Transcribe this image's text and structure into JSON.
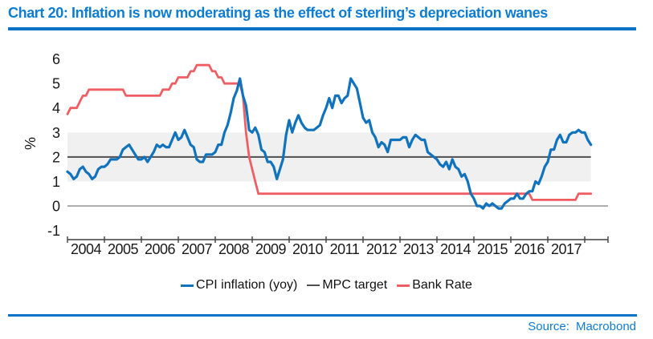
{
  "header": {
    "title": "Chart 20: Inflation is now moderating as the effect of sterling’s depreciation wanes"
  },
  "footer": {
    "source_label": "Source:",
    "source_value": "Macrobond"
  },
  "colors": {
    "accent_blue": "#0e7dd1",
    "rule_blue": "#0b73c5",
    "cpi_line": "#1273bd",
    "bank_rate_line": "#ef5e63",
    "mpc_line": "#4f4f51",
    "zero_line": "#949494",
    "axis": "#3f3f3f",
    "band_fill": "#f0f0f1",
    "tick_text": "#1a1a1a"
  },
  "legend": {
    "items": [
      {
        "label": "CPI inflation (yoy)",
        "color_key": "cpi_line"
      },
      {
        "label": "MPC target",
        "color_key": "mpc_line"
      },
      {
        "label": "Bank Rate",
        "color_key": "bank_rate_line"
      }
    ]
  },
  "chart_data": {
    "type": "line",
    "ylabel": "%",
    "ylim": [
      -1,
      6
    ],
    "yticks": [
      -1,
      0,
      1,
      2,
      3,
      4,
      5,
      6
    ],
    "x_tick_years": [
      2004,
      2005,
      2006,
      2007,
      2008,
      2009,
      2010,
      2011,
      2012,
      2013,
      2014,
      2015,
      2016,
      2017,
      2018
    ],
    "x_year_labels": [
      "2004",
      "2005",
      "2006",
      "2007",
      "2008",
      "2009",
      "2010",
      "2011",
      "2012",
      "2013",
      "2014",
      "2015",
      "2016",
      "2017"
    ],
    "grid": {
      "zero_line": true
    },
    "target_band": {
      "low": 1,
      "high": 3
    },
    "series": [
      {
        "name": "CPI inflation (yoy)",
        "color_key": "cpi_line",
        "start": "2004-01",
        "frequency": "monthly",
        "values": [
          1.4,
          1.3,
          1.1,
          1.2,
          1.5,
          1.6,
          1.4,
          1.3,
          1.1,
          1.2,
          1.5,
          1.6,
          1.6,
          1.7,
          1.9,
          1.9,
          1.9,
          2.0,
          2.3,
          2.4,
          2.5,
          2.3,
          2.1,
          1.9,
          1.9,
          2.0,
          1.8,
          2.0,
          2.2,
          2.5,
          2.4,
          2.5,
          2.4,
          2.4,
          2.7,
          3.0,
          2.7,
          2.8,
          3.1,
          2.8,
          2.5,
          2.4,
          1.9,
          1.8,
          1.8,
          2.1,
          2.1,
          2.1,
          2.2,
          2.5,
          2.5,
          3.0,
          3.3,
          3.8,
          4.4,
          4.7,
          5.2,
          4.5,
          4.1,
          3.1,
          3.0,
          3.2,
          2.9,
          2.3,
          2.2,
          1.8,
          1.8,
          1.6,
          1.1,
          1.5,
          1.9,
          2.9,
          3.5,
          3.0,
          3.4,
          3.7,
          3.4,
          3.2,
          3.1,
          3.1,
          3.1,
          3.2,
          3.3,
          3.7,
          4.0,
          4.4,
          4.0,
          4.5,
          4.5,
          4.2,
          4.4,
          4.5,
          5.2,
          5.0,
          4.8,
          4.2,
          3.6,
          3.4,
          3.5,
          3.0,
          2.8,
          2.4,
          2.6,
          2.5,
          2.2,
          2.7,
          2.7,
          2.7,
          2.7,
          2.8,
          2.8,
          2.4,
          2.7,
          2.9,
          2.8,
          2.7,
          2.7,
          2.2,
          2.1,
          2.0,
          1.9,
          1.7,
          1.6,
          1.8,
          1.5,
          1.9,
          1.6,
          1.5,
          1.2,
          1.3,
          1.0,
          0.5,
          0.3,
          0.0,
          0.0,
          -0.1,
          0.1,
          0.0,
          0.1,
          0.0,
          -0.1,
          -0.1,
          0.1,
          0.2,
          0.3,
          0.3,
          0.5,
          0.3,
          0.3,
          0.5,
          0.6,
          0.6,
          1.0,
          0.9,
          1.2,
          1.6,
          1.8,
          2.3,
          2.3,
          2.7,
          2.9,
          2.6,
          2.6,
          2.9,
          3.0,
          3.0,
          3.1,
          3.0,
          3.0,
          2.7,
          2.5
        ]
      },
      {
        "name": "MPC target",
        "color_key": "mpc_line",
        "constant": 2.0
      },
      {
        "name": "Bank Rate",
        "color_key": "bank_rate_line",
        "start": "2004-01",
        "frequency": "monthly",
        "values": [
          3.75,
          4.0,
          4.0,
          4.0,
          4.25,
          4.5,
          4.5,
          4.75,
          4.75,
          4.75,
          4.75,
          4.75,
          4.75,
          4.75,
          4.75,
          4.75,
          4.75,
          4.75,
          4.75,
          4.5,
          4.5,
          4.5,
          4.5,
          4.5,
          4.5,
          4.5,
          4.5,
          4.5,
          4.5,
          4.5,
          4.5,
          4.75,
          4.75,
          4.75,
          5.0,
          5.0,
          5.25,
          5.25,
          5.25,
          5.25,
          5.5,
          5.5,
          5.75,
          5.75,
          5.75,
          5.75,
          5.75,
          5.5,
          5.5,
          5.25,
          5.25,
          5.0,
          5.0,
          5.0,
          5.0,
          5.0,
          5.0,
          4.5,
          3.0,
          2.0,
          1.5,
          1.0,
          0.5,
          0.5,
          0.5,
          0.5,
          0.5,
          0.5,
          0.5,
          0.5,
          0.5,
          0.5,
          0.5,
          0.5,
          0.5,
          0.5,
          0.5,
          0.5,
          0.5,
          0.5,
          0.5,
          0.5,
          0.5,
          0.5,
          0.5,
          0.5,
          0.5,
          0.5,
          0.5,
          0.5,
          0.5,
          0.5,
          0.5,
          0.5,
          0.5,
          0.5,
          0.5,
          0.5,
          0.5,
          0.5,
          0.5,
          0.5,
          0.5,
          0.5,
          0.5,
          0.5,
          0.5,
          0.5,
          0.5,
          0.5,
          0.5,
          0.5,
          0.5,
          0.5,
          0.5,
          0.5,
          0.5,
          0.5,
          0.5,
          0.5,
          0.5,
          0.5,
          0.5,
          0.5,
          0.5,
          0.5,
          0.5,
          0.5,
          0.5,
          0.5,
          0.5,
          0.5,
          0.5,
          0.5,
          0.5,
          0.5,
          0.5,
          0.5,
          0.5,
          0.5,
          0.5,
          0.5,
          0.5,
          0.5,
          0.5,
          0.5,
          0.5,
          0.5,
          0.5,
          0.5,
          0.5,
          0.25,
          0.25,
          0.25,
          0.25,
          0.25,
          0.25,
          0.25,
          0.25,
          0.25,
          0.25,
          0.25,
          0.25,
          0.25,
          0.25,
          0.25,
          0.5,
          0.5,
          0.5,
          0.5,
          0.5
        ]
      }
    ]
  }
}
